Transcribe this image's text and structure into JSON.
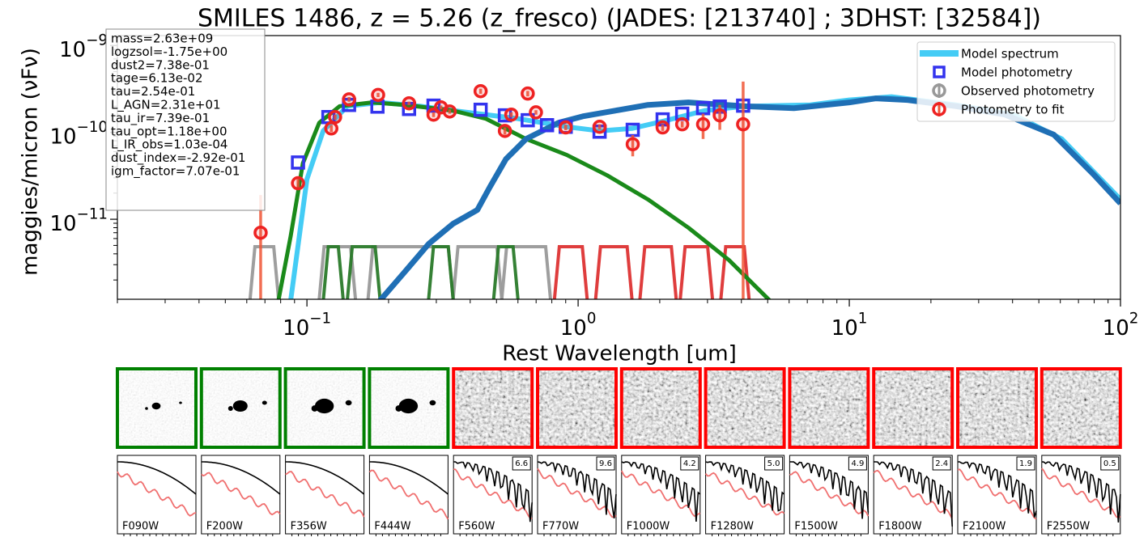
{
  "chart_data": {
    "type": "line",
    "title": "SMILES 1486, z = 5.26 (z_fresco)   (JADES: [213740] ; 3DHST: [32584])",
    "xlabel": "Rest Wavelength [um]",
    "ylabel": "maggies/micron (νFν)",
    "xscale": "log",
    "yscale": "log",
    "xlim": [
      0.02,
      100
    ],
    "ylim": [
      1.2e-12,
      1.3e-09
    ],
    "xticks": [
      {
        "value": 0.1,
        "label": "10−1"
      },
      {
        "value": 1,
        "label": "100"
      },
      {
        "value": 10,
        "label": "101"
      },
      {
        "value": 100,
        "label": "102"
      }
    ],
    "yticks": [
      {
        "value": 1e-11,
        "label": "10−11"
      },
      {
        "value": 1e-10,
        "label": "10−10"
      },
      {
        "value": 1e-09,
        "label": "10−9"
      }
    ],
    "legend_loc": "upper right",
    "params": [
      "mass=2.63e+09",
      "logzsol=-1.75e+00",
      "dust2=7.38e-01",
      "tage=6.13e-02",
      "tau=2.54e-01",
      "L_AGN=2.31e+01",
      "tau_ir=7.39e-01",
      "tau_opt=1.18e+00",
      "L_IR_obs=1.03e-04",
      "dust_index=-2.92e-01",
      "igm_factor=7.07e-01"
    ],
    "series": [
      {
        "name": "Model spectrum",
        "type": "line",
        "color": "#44ccf5",
        "x": [
          0.0871,
          0.1,
          0.1148,
          0.141,
          0.186,
          0.262,
          0.346,
          0.456,
          0.6,
          0.908,
          1.2,
          1.58,
          2.07,
          2.93,
          4.14,
          7.18,
          10,
          14.3,
          24.8,
          40.3,
          60.8,
          100
        ],
        "values": [
          1.16e-12,
          2.89e-11,
          1.04e-10,
          2e-10,
          2.21e-10,
          2e-10,
          1.78e-10,
          1.6e-10,
          1.44e-10,
          1.16e-10,
          1.04e-10,
          1.11e-10,
          1.35e-10,
          1.78e-10,
          2e-10,
          2.07e-10,
          2.36e-10,
          2.57e-10,
          2.07e-10,
          1.6e-10,
          8.4e-11,
          1.69e-11
        ]
      },
      {
        "type": "line",
        "color": "#1a8a1a",
        "x": [
          0.0785,
          0.0871,
          0.0966,
          0.111,
          0.132,
          0.174,
          0.229,
          0.346,
          0.456,
          0.643,
          0.908,
          1.28,
          1.81,
          2.55,
          3.6,
          5.09
        ],
        "values": [
          1.16e-12,
          6.4e-12,
          4.4e-11,
          1.29e-10,
          2e-10,
          2.21e-10,
          2.07e-10,
          1.78e-10,
          1.44e-10,
          8.4e-11,
          5.5e-11,
          3.2e-11,
          1.69e-11,
          8e-12,
          3.39e-12,
          1.16e-12
        ]
      },
      {
        "type": "line",
        "color": "#1f6fb5",
        "x": [
          0.186,
          0.229,
          0.281,
          0.346,
          0.425,
          0.472,
          0.542,
          0.643,
          0.847,
          1.04,
          1.37,
          1.81,
          2.55,
          4.14,
          6.25,
          10,
          12.5,
          16.4,
          24.8,
          37.5,
          56.8,
          80.2,
          100
        ],
        "values": [
          1.16e-12,
          2.46e-12,
          5.2e-12,
          8.9e-12,
          1.28e-11,
          2.33e-11,
          4.93e-11,
          8.4e-11,
          1.29e-10,
          1.53e-10,
          1.78e-10,
          2.07e-10,
          2.21e-10,
          2e-10,
          1.9e-10,
          2.21e-10,
          2.46e-10,
          2.36e-10,
          2e-10,
          1.6e-10,
          9.4e-11,
          3.2e-11,
          1.52e-11
        ]
      },
      {
        "name": "Model photometry",
        "type": "square",
        "color": "#3333ee",
        "x": [
          0.0927,
          0.12,
          0.143,
          0.182,
          0.238,
          0.293,
          0.437,
          0.537,
          0.652,
          0.768,
          0.9,
          1.2,
          1.59,
          2.05,
          2.42,
          2.89,
          3.33,
          4.06
        ],
        "values": [
          4.5e-11,
          1.5e-10,
          2.07e-10,
          1.98e-10,
          1.86e-10,
          2.03e-10,
          1.82e-10,
          1.57e-10,
          1.38e-10,
          1.21e-10,
          1.16e-10,
          1.02e-10,
          1.07e-10,
          1.41e-10,
          1.64e-10,
          1.9e-10,
          1.98e-10,
          2.03e-10
        ]
      },
      {
        "name": "Observed photometry",
        "type": "circle",
        "color": "#999999",
        "x": [],
        "values": [],
        "errors": []
      },
      {
        "name": "Photometry to fit",
        "type": "circle",
        "color": "#ee2222",
        "x": [
          0.0675,
          0.0927,
          0.123,
          0.127,
          0.143,
          0.183,
          0.238,
          0.293,
          0.312,
          0.336,
          0.437,
          0.537,
          0.567,
          0.652,
          0.699,
          0.9,
          1.2,
          1.59,
          2.05,
          2.42,
          2.89,
          3.33,
          4.06
        ],
        "values": [
          7e-12,
          2.6e-11,
          1.11e-10,
          1.5e-10,
          2.4e-10,
          2.7e-10,
          2.16e-10,
          1.6e-10,
          1.94e-10,
          1.74e-10,
          2.98e-10,
          1.04e-10,
          1.6e-10,
          2.8e-10,
          1.7e-10,
          1.14e-10,
          1.16e-10,
          7.3e-11,
          1.14e-10,
          1.24e-10,
          1.24e-10,
          1.57e-10,
          1.24e-10
        ],
        "errors": [
          1.2e-11,
          3e-12,
          1e-11,
          1e-11,
          1.5e-11,
          1.5e-11,
          1e-11,
          1e-11,
          1e-11,
          1e-11,
          2e-11,
          1e-11,
          1e-11,
          2e-11,
          1e-11,
          8e-12,
          8e-12,
          2e-11,
          1e-11,
          1e-11,
          4e-11,
          5e-11,
          2.6e-10
        ]
      }
    ],
    "filters": [
      {
        "lo": 0.0617,
        "hi": 0.0786,
        "color": "#999999"
      },
      {
        "lo": 0.111,
        "hi": 0.151,
        "color": "#999999"
      },
      {
        "lo": 0.168,
        "hi": 0.346,
        "color": "#999999"
      },
      {
        "lo": 0.346,
        "hi": 0.523,
        "color": "#999999"
      },
      {
        "lo": 0.523,
        "hi": 0.791,
        "color": "#999999"
      },
      {
        "lo": 0.115,
        "hi": 0.136,
        "color": "#2a7a2a"
      },
      {
        "lo": 0.141,
        "hi": 0.186,
        "color": "#2a7a2a"
      },
      {
        "lo": 0.281,
        "hi": 0.346,
        "color": "#2a7a2a"
      },
      {
        "lo": 0.488,
        "hi": 0.6,
        "color": "#2a7a2a"
      },
      {
        "lo": 0.818,
        "hi": 1.08,
        "color": "#dd3333"
      },
      {
        "lo": 1.16,
        "hi": 1.58,
        "color": "#dd3333"
      },
      {
        "lo": 1.69,
        "hi": 2.3,
        "color": "#dd3333"
      },
      {
        "lo": 2.38,
        "hi": 3.13,
        "color": "#dd3333"
      },
      {
        "lo": 3.36,
        "hi": 4.27,
        "color": "#dd3333"
      }
    ]
  },
  "panels": [
    {
      "filter": "F090W",
      "color": "#008000"
    },
    {
      "filter": "F200W",
      "color": "#008000"
    },
    {
      "filter": "F356W",
      "color": "#008000"
    },
    {
      "filter": "F444W",
      "color": "#008000"
    },
    {
      "filter": "F560W",
      "color": "#ff0000",
      "score": "6.6"
    },
    {
      "filter": "F770W",
      "color": "#ff0000",
      "score": "9.6"
    },
    {
      "filter": "F1000W",
      "color": "#ff0000",
      "score": "4.2"
    },
    {
      "filter": "F1280W",
      "color": "#ff0000",
      "score": "5.0"
    },
    {
      "filter": "F1500W",
      "color": "#ff0000",
      "score": "4.9"
    },
    {
      "filter": "F1800W",
      "color": "#ff0000",
      "score": "2.4"
    },
    {
      "filter": "F2100W",
      "color": "#ff0000",
      "score": "1.9"
    },
    {
      "filter": "F2550W",
      "color": "#ff0000",
      "score": "0.5"
    }
  ]
}
